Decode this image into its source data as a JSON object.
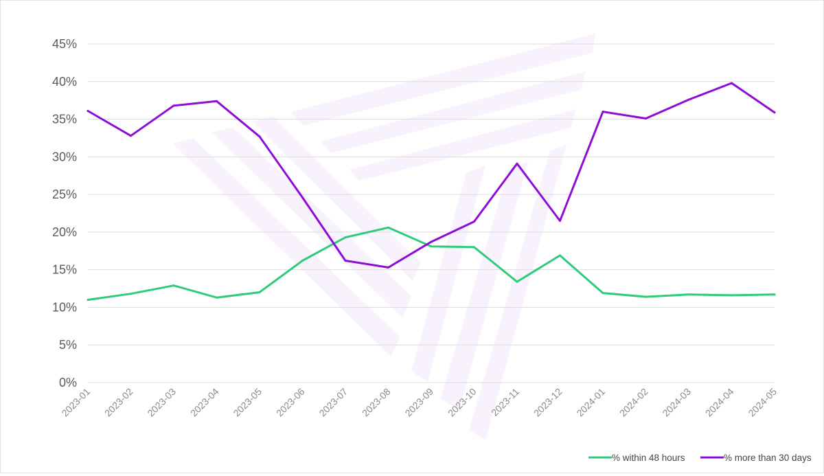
{
  "chart_data": {
    "type": "line",
    "title": "",
    "xlabel": "",
    "ylabel": "",
    "ylim": [
      0,
      45
    ],
    "y_ticks": [
      "0%",
      "5%",
      "10%",
      "15%",
      "20%",
      "25%",
      "30%",
      "35%",
      "40%",
      "45%"
    ],
    "y_tick_values": [
      0,
      5,
      10,
      15,
      20,
      25,
      30,
      35,
      40,
      45
    ],
    "grid": true,
    "legend_position": "bottom-right",
    "categories": [
      "2023-01",
      "2023-02",
      "2023-03",
      "2023-04",
      "2023-05",
      "2023-06",
      "2023-07",
      "2023-08",
      "2023-09",
      "2023-10",
      "2023-11",
      "2023-12",
      "2024-01",
      "2024-02",
      "2024-03",
      "2024-04",
      "2024-05"
    ],
    "series": [
      {
        "name": "% within 48 hours",
        "color": "#2ecc7a",
        "values": [
          11.0,
          11.8,
          12.9,
          11.3,
          12.0,
          16.2,
          19.3,
          20.6,
          18.1,
          18.0,
          13.4,
          16.9,
          11.9,
          11.4,
          11.7,
          11.6,
          11.7
        ]
      },
      {
        "name": "% more than 30 days",
        "color": "#8e0dd6",
        "values": [
          36.1,
          32.8,
          36.8,
          37.4,
          32.7,
          24.6,
          16.2,
          15.3,
          18.7,
          21.4,
          29.1,
          21.5,
          36.0,
          35.1,
          37.6,
          39.8,
          35.9
        ]
      }
    ]
  }
}
